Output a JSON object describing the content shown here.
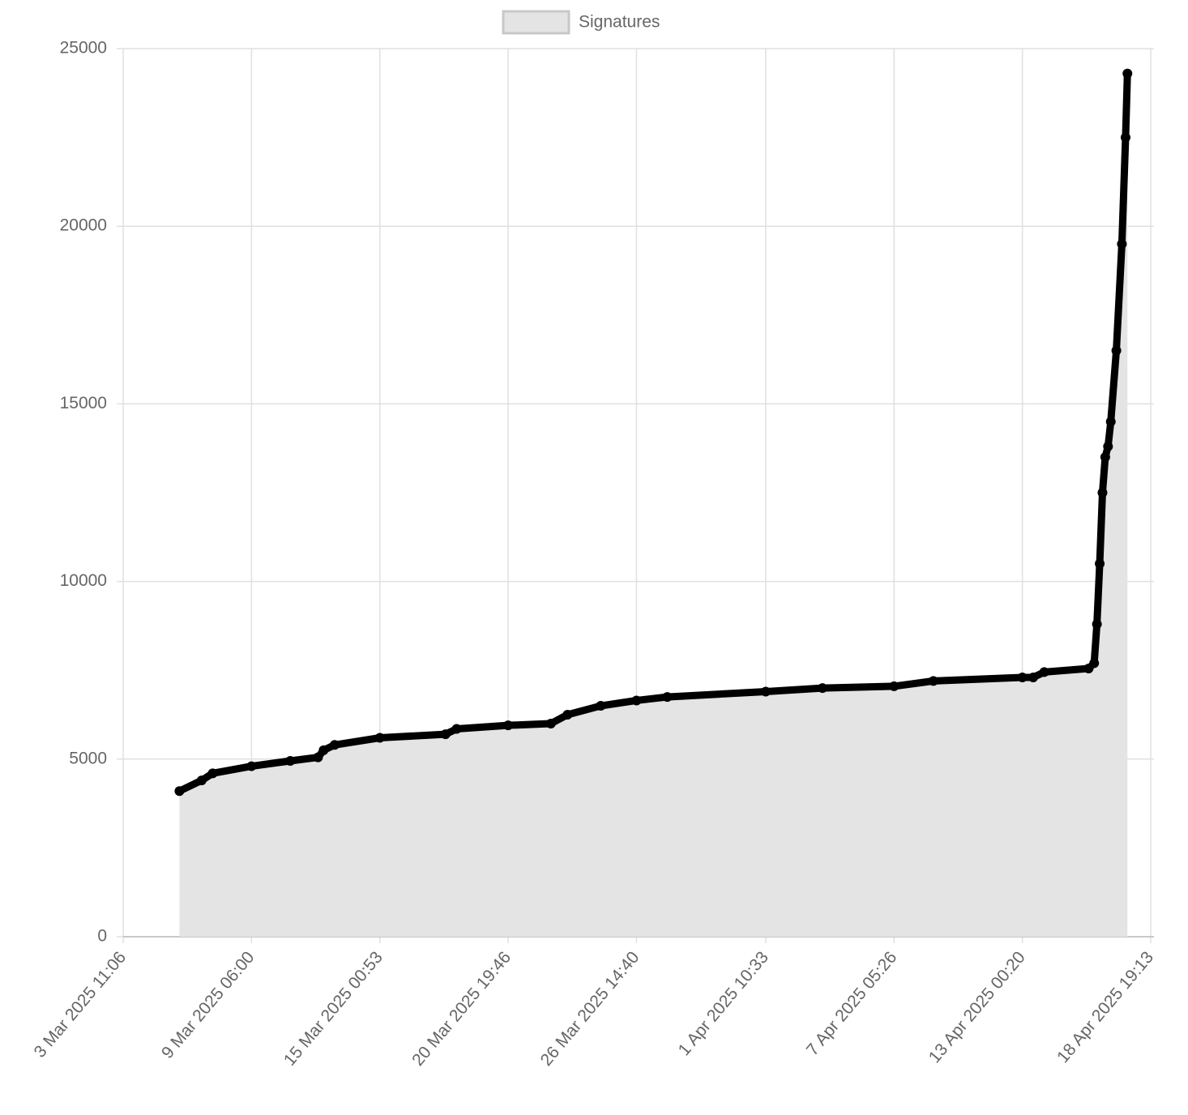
{
  "chart_data": {
    "type": "area",
    "legend": "top",
    "grid": true,
    "x": [
      "6 Mar 2025 00:00",
      "7 Mar 2025 00:00",
      "7 Mar 2025 12:00",
      "9 Mar 2025 06:00",
      "11 Mar 2025 00:00",
      "12 Mar 2025 06:00",
      "12 Mar 2025 12:00",
      "13 Mar 2025 00:00",
      "15 Mar 2025 00:53",
      "18 Mar 2025 00:00",
      "18 Mar 2025 12:00",
      "20 Mar 2025 19:46",
      "22 Mar 2025 18:00",
      "23 Mar 2025 12:00",
      "25 Mar 2025 00:00",
      "26 Mar 2025 14:40",
      "28 Mar 2025 00:00",
      "1 Apr 2025 10:33",
      "4 Apr 2025 00:00",
      "7 Apr 2025 05:26",
      "9 Apr 2025 00:00",
      "13 Apr 2025 00:20",
      "13 Apr 2025 12:00",
      "14 Apr 2025 00:00",
      "16 Apr 2025 00:00",
      "16 Apr 2025 06:00",
      "16 Apr 2025 09:00",
      "16 Apr 2025 12:00",
      "16 Apr 2025 15:00",
      "16 Apr 2025 18:00",
      "16 Apr 2025 21:00",
      "17 Apr 2025 00:00",
      "17 Apr 2025 06:00",
      "17 Apr 2025 12:00",
      "17 Apr 2025 16:00",
      "17 Apr 2025 18:00"
    ],
    "series": [
      {
        "name": "Signatures",
        "color": "#000000",
        "fill": "#e4e4e4",
        "values": [
          4100,
          4400,
          4600,
          4800,
          4950,
          5050,
          5250,
          5400,
          5600,
          5700,
          5850,
          5950,
          6000,
          6250,
          6500,
          6650,
          6750,
          6900,
          7000,
          7050,
          7200,
          7300,
          7300,
          7450,
          7550,
          7700,
          8800,
          10500,
          12500,
          13500,
          13800,
          14500,
          16500,
          19500,
          22500,
          24300
        ]
      }
    ],
    "xlim": [
      "3 Mar 2025 11:06",
      "18 Apr 2025 19:13"
    ],
    "xticks": [
      "3 Mar 2025 11:06",
      "9 Mar 2025 06:00",
      "15 Mar 2025 00:53",
      "20 Mar 2025 19:46",
      "26 Mar 2025 14:40",
      "1 Apr 2025 10:33",
      "7 Apr 2025 05:26",
      "13 Apr 2025 00:20",
      "18 Apr 2025 19:13"
    ],
    "ylim": [
      0,
      25000
    ],
    "yticks": [
      0,
      5000,
      10000,
      15000,
      20000,
      25000
    ]
  }
}
